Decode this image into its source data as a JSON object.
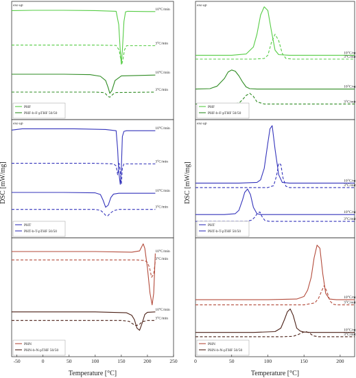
{
  "chart_data": [
    {
      "id": "left-top",
      "type": "line",
      "xlim": [
        -60,
        250
      ],
      "exo_label": "exo up",
      "legend": [
        "PHF",
        "PHF-b-F-pTHF 50/50"
      ],
      "series": [
        {
          "name": "PHF",
          "rate": "10°C/min",
          "color": "#55cc44",
          "dash": false,
          "upper": true,
          "x": [
            -60,
            -20,
            40,
            100,
            140,
            145,
            148,
            150,
            152,
            155,
            158,
            162,
            200,
            215
          ],
          "y": [
            0.92,
            0.925,
            0.925,
            0.92,
            0.91,
            0.7,
            0.3,
            0.08,
            0.3,
            0.75,
            0.9,
            0.91,
            0.905,
            0.905
          ]
        },
        {
          "name": "PHF",
          "rate": "3°C/min",
          "color": "#55cc44",
          "dash": true,
          "upper": true,
          "x": [
            -60,
            100,
            140,
            146,
            149,
            151,
            153,
            156,
            160,
            215
          ],
          "y": [
            0.38,
            0.38,
            0.375,
            0.3,
            0.15,
            0.08,
            0.15,
            0.3,
            0.37,
            0.37
          ]
        },
        {
          "name": "PHF-b-F-pTHF 50/50",
          "rate": "10°C/min",
          "color": "#2e8b22",
          "dash": false,
          "upper": false,
          "x": [
            -60,
            40,
            90,
            110,
            120,
            125,
            128,
            132,
            138,
            150,
            215
          ],
          "y": [
            0.9,
            0.9,
            0.89,
            0.85,
            0.75,
            0.58,
            0.45,
            0.52,
            0.75,
            0.86,
            0.88
          ]
        },
        {
          "name": "PHF-b-F-pTHF 50/50",
          "rate": "3°C/min",
          "color": "#2e8b22",
          "dash": true,
          "upper": false,
          "x": [
            -60,
            100,
            115,
            120,
            124,
            128,
            134,
            140,
            215
          ],
          "y": [
            0.48,
            0.48,
            0.47,
            0.44,
            0.38,
            0.36,
            0.43,
            0.47,
            0.48
          ]
        }
      ],
      "rate_labels": [
        {
          "text": "10°C/min",
          "x": 215,
          "series": 0
        },
        {
          "text": "3°C/min",
          "x": 215,
          "series": 1
        },
        {
          "text": "10°C/min",
          "x": 215,
          "series": 2
        },
        {
          "text": "3°C/min",
          "x": 215,
          "series": 3
        }
      ]
    },
    {
      "id": "right-top",
      "type": "line",
      "xlim": [
        0,
        220
      ],
      "exo_label": "exo up",
      "legend": [
        "PHF",
        "PHF-b-F-pTHF 50/50"
      ],
      "series": [
        {
          "name": "PHF",
          "rate": "10°C/min",
          "color": "#55cc44",
          "dash": false,
          "upper": true,
          "x": [
            0,
            50,
            70,
            80,
            85,
            90,
            95,
            100,
            105,
            110,
            115,
            130,
            150,
            220
          ],
          "y": [
            0.22,
            0.22,
            0.24,
            0.35,
            0.55,
            0.85,
            0.98,
            0.92,
            0.6,
            0.3,
            0.23,
            0.22,
            0.22,
            0.22
          ]
        },
        {
          "name": "PHF",
          "rate": "3°C/min",
          "color": "#55cc44",
          "dash": true,
          "upper": true,
          "x": [
            0,
            80,
            95,
            100,
            105,
            110,
            115,
            120,
            125,
            135,
            220
          ],
          "y": [
            0.16,
            0.16,
            0.17,
            0.22,
            0.42,
            0.55,
            0.45,
            0.25,
            0.17,
            0.16,
            0.16
          ]
        },
        {
          "name": "PHF-b-F-pTHF 50/50",
          "rate": "10°C/min",
          "color": "#2e8b22",
          "dash": false,
          "upper": false,
          "x": [
            0,
            20,
            30,
            40,
            45,
            50,
            55,
            60,
            65,
            70,
            75,
            85,
            220
          ],
          "y": [
            0.55,
            0.56,
            0.62,
            0.8,
            0.95,
            1.0,
            0.97,
            0.86,
            0.72,
            0.6,
            0.56,
            0.55,
            0.55
          ]
        },
        {
          "name": "PHF-b-F-pTHF 50/50",
          "rate": "3°C/min",
          "color": "#2e8b22",
          "dash": true,
          "upper": false,
          "x": [
            0,
            50,
            60,
            65,
            70,
            75,
            80,
            85,
            95,
            220
          ],
          "y": [
            0.2,
            0.2,
            0.22,
            0.3,
            0.4,
            0.45,
            0.38,
            0.25,
            0.2,
            0.2
          ]
        }
      ],
      "rate_labels": [
        {
          "text": "10°C/min",
          "x": 205,
          "series": 0
        },
        {
          "text": "3°C/min",
          "x": 205,
          "series": 1
        },
        {
          "text": "10°C/min",
          "x": 205,
          "series": 2
        },
        {
          "text": "3°C/min",
          "x": 205,
          "series": 3
        }
      ]
    },
    {
      "id": "left-middle",
      "type": "line",
      "xlim": [
        -60,
        250
      ],
      "exo_label": "exo up",
      "legend": [
        "PHT",
        "PHT-b-T-pTHF 50/50"
      ],
      "series": [
        {
          "name": "PHT",
          "rate": "10°C/min",
          "color": "#3333bb",
          "dash": false,
          "upper": true,
          "x": [
            -60,
            -40,
            0,
            60,
            120,
            140,
            143,
            145,
            148,
            150,
            152,
            155,
            160,
            215
          ],
          "y": [
            0.9,
            0.92,
            0.92,
            0.92,
            0.91,
            0.89,
            0.6,
            0.25,
            0.05,
            0.3,
            0.8,
            0.88,
            0.89,
            0.89
          ]
        },
        {
          "name": "PHT",
          "rate": "3°C/min",
          "color": "#3333bb",
          "dash": true,
          "upper": true,
          "x": [
            -60,
            100,
            135,
            140,
            143,
            146,
            148,
            150,
            152,
            155,
            215
          ],
          "y": [
            0.38,
            0.38,
            0.37,
            0.34,
            0.2,
            0.38,
            0.25,
            0.05,
            0.3,
            0.37,
            0.37
          ]
        },
        {
          "name": "PHT-b-T-pTHF 50/50",
          "rate": "10°C/min",
          "color": "#3333bb",
          "dash": false,
          "upper": false,
          "x": [
            -60,
            40,
            100,
            110,
            115,
            120,
            125,
            130,
            135,
            145,
            215
          ],
          "y": [
            0.9,
            0.9,
            0.89,
            0.85,
            0.72,
            0.55,
            0.6,
            0.78,
            0.86,
            0.88,
            0.88
          ]
        },
        {
          "name": "PHT-b-T-pTHF 50/50",
          "rate": "3°C/min",
          "color": "#3333bb",
          "dash": true,
          "upper": false,
          "x": [
            -60,
            100,
            110,
            116,
            120,
            124,
            128,
            135,
            145,
            215
          ],
          "y": [
            0.5,
            0.5,
            0.48,
            0.42,
            0.36,
            0.35,
            0.4,
            0.47,
            0.5,
            0.5
          ]
        }
      ],
      "rate_labels": [
        {
          "text": "10°C/min",
          "x": 215,
          "series": 0
        },
        {
          "text": "3°C/min",
          "x": 215,
          "series": 1
        },
        {
          "text": "10°C/min",
          "x": 215,
          "series": 2
        },
        {
          "text": "3°C/min",
          "x": 215,
          "series": 3
        }
      ]
    },
    {
      "id": "right-middle",
      "type": "line",
      "xlim": [
        0,
        220
      ],
      "exo_label": "exo up",
      "legend": [
        "PHT",
        "PHT-b-T-pTHF 50/50"
      ],
      "series": [
        {
          "name": "PHT",
          "rate": "10°C/min",
          "color": "#3333bb",
          "dash": false,
          "upper": true,
          "x": [
            0,
            60,
            85,
            90,
            95,
            100,
            103,
            106,
            110,
            115,
            120,
            130,
            220
          ],
          "y": [
            0.07,
            0.07,
            0.08,
            0.12,
            0.3,
            0.7,
            0.92,
            0.97,
            0.6,
            0.2,
            0.08,
            0.07,
            0.07
          ]
        },
        {
          "name": "PHT",
          "rate": "3°C/min",
          "color": "#3333bb",
          "dash": true,
          "upper": true,
          "x": [
            0,
            100,
            108,
            112,
            115,
            118,
            121,
            125,
            130,
            220
          ],
          "y": [
            0.0,
            0.0,
            0.03,
            0.18,
            0.38,
            0.36,
            0.15,
            0.02,
            0.0,
            0.0
          ]
        },
        {
          "name": "PHT-b-T-pTHF 50/50",
          "rate": "10°C/min",
          "color": "#3333bb",
          "dash": false,
          "upper": false,
          "x": [
            0,
            40,
            55,
            60,
            65,
            68,
            72,
            76,
            80,
            85,
            90,
            100,
            220
          ],
          "y": [
            0.38,
            0.38,
            0.4,
            0.48,
            0.72,
            0.9,
            0.98,
            0.85,
            0.55,
            0.4,
            0.38,
            0.38,
            0.38
          ]
        },
        {
          "name": "PHT-b-T-pTHF 50/50",
          "rate": "3°C/min",
          "color": "#3333bb",
          "dash": true,
          "upper": false,
          "x": [
            0,
            70,
            78,
            82,
            86,
            89,
            92,
            96,
            102,
            220
          ],
          "y": [
            0.22,
            0.22,
            0.25,
            0.32,
            0.42,
            0.44,
            0.33,
            0.24,
            0.22,
            0.22
          ]
        }
      ],
      "rate_labels": [
        {
          "text": "10°C/min",
          "x": 205,
          "series": 0
        },
        {
          "text": "3°C/min",
          "x": 205,
          "series": 1
        },
        {
          "text": "10°C/min",
          "x": 205,
          "series": 2
        },
        {
          "text": "3°C/min",
          "x": 205,
          "series": 3
        }
      ]
    },
    {
      "id": "left-bottom",
      "type": "line",
      "xlim": [
        -60,
        250
      ],
      "exo_label": "",
      "legend": [
        "PHN",
        "PHN-b-N-pTHF 50/50"
      ],
      "series": [
        {
          "name": "PHN",
          "rate": "10°C/min",
          "color": "#b34a3a",
          "dash": false,
          "upper": true,
          "x": [
            -60,
            100,
            170,
            185,
            190,
            192,
            195,
            200,
            205,
            209,
            212,
            215
          ],
          "y": [
            0.85,
            0.85,
            0.84,
            0.86,
            0.94,
            0.97,
            0.9,
            0.6,
            0.2,
            0.02,
            0.2,
            0.82
          ]
        },
        {
          "name": "PHN",
          "rate": "3°C/min",
          "color": "#b34a3a",
          "dash": true,
          "upper": true,
          "x": [
            -60,
            180,
            195,
            200,
            204,
            208,
            212,
            215
          ],
          "y": [
            0.72,
            0.72,
            0.71,
            0.68,
            0.6,
            0.45,
            0.5,
            0.7
          ]
        },
        {
          "name": "PHN-b-N-pTHF 50/50",
          "rate": "10°C/min",
          "color": "#4a1f15",
          "dash": false,
          "upper": false,
          "x": [
            -60,
            100,
            160,
            170,
            175,
            180,
            185,
            190,
            195,
            200,
            215
          ],
          "y": [
            0.88,
            0.88,
            0.86,
            0.8,
            0.7,
            0.5,
            0.45,
            0.62,
            0.82,
            0.87,
            0.88
          ]
        },
        {
          "name": "PHN-b-N-pTHF 50/50",
          "rate": "3°C/min",
          "color": "#4a1f15",
          "dash": true,
          "upper": false,
          "x": [
            -60,
            150,
            165,
            172,
            178,
            184,
            190,
            200,
            215
          ],
          "y": [
            0.68,
            0.68,
            0.66,
            0.6,
            0.56,
            0.58,
            0.65,
            0.68,
            0.68
          ]
        }
      ],
      "rate_labels": [
        {
          "text": "10°C/min",
          "x": 215,
          "series": 0
        },
        {
          "text": "3°C/min",
          "x": 215,
          "series": 1
        },
        {
          "text": "10°C/min",
          "x": 215,
          "series": 2
        },
        {
          "text": "3°C/min",
          "x": 215,
          "series": 3
        }
      ]
    },
    {
      "id": "right-bottom",
      "type": "line",
      "xlim": [
        0,
        220
      ],
      "exo_label": "",
      "legend": [
        "PHN",
        "PHN-b-N-pTHF 50/50"
      ],
      "series": [
        {
          "name": "PHN",
          "rate": "10°C/min",
          "color": "#b34a3a",
          "dash": false,
          "upper": true,
          "x": [
            0,
            100,
            140,
            150,
            155,
            160,
            164,
            168,
            172,
            176,
            180,
            185,
            195,
            220
          ],
          "y": [
            0.1,
            0.1,
            0.11,
            0.15,
            0.25,
            0.45,
            0.75,
            0.95,
            0.9,
            0.5,
            0.2,
            0.11,
            0.1,
            0.1
          ]
        },
        {
          "name": "PHN",
          "rate": "3°C/min",
          "color": "#b34a3a",
          "dash": true,
          "upper": true,
          "x": [
            0,
            150,
            165,
            170,
            175,
            178,
            182,
            186,
            190,
            195,
            220
          ],
          "y": [
            0.02,
            0.02,
            0.05,
            0.12,
            0.25,
            0.32,
            0.22,
            0.08,
            0.03,
            0.02,
            0.02
          ]
        },
        {
          "name": "PHN-b-N-pTHF 50/50",
          "rate": "10°C/min",
          "color": "#4a1f15",
          "dash": false,
          "upper": false,
          "x": [
            0,
            80,
            110,
            118,
            123,
            127,
            131,
            135,
            140,
            145,
            150,
            160,
            220
          ],
          "y": [
            0.4,
            0.4,
            0.42,
            0.5,
            0.7,
            0.88,
            0.95,
            0.8,
            0.5,
            0.43,
            0.41,
            0.4,
            0.4
          ]
        },
        {
          "name": "PHN-b-N-pTHF 50/50",
          "rate": "3°C/min",
          "color": "#4a1f15",
          "dash": true,
          "upper": false,
          "x": [
            0,
            120,
            135,
            142,
            148,
            153,
            158,
            163,
            170,
            220
          ],
          "y": [
            0.3,
            0.3,
            0.31,
            0.35,
            0.4,
            0.42,
            0.38,
            0.32,
            0.3,
            0.3
          ]
        }
      ],
      "rate_labels": [
        {
          "text": "10°C/min",
          "x": 205,
          "series": 0
        },
        {
          "text": "3°C/min",
          "x": 205,
          "series": 1
        },
        {
          "text": "10°C/min",
          "x": 205,
          "series": 2
        },
        {
          "text": "3°C/min",
          "x": 205,
          "series": 3
        }
      ]
    }
  ],
  "axes": {
    "xlabel": "Temperature [°C]",
    "ylabel": "DSC [mW/mg]",
    "left_ticks": [
      "-50",
      "0",
      "50",
      "100",
      "150",
      "200",
      "250"
    ],
    "right_ticks": [
      "0",
      "50",
      "100",
      "150",
      "200"
    ]
  }
}
